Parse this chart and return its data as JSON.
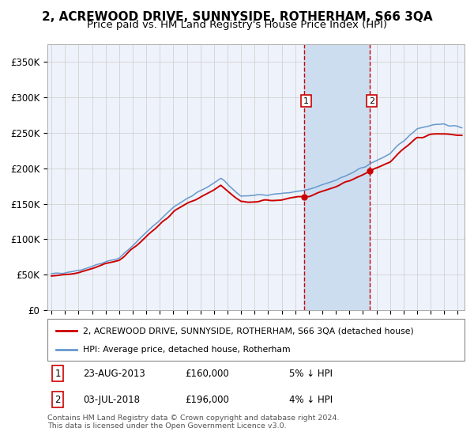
{
  "title": "2, ACREWOOD DRIVE, SUNNYSIDE, ROTHERHAM, S66 3QA",
  "subtitle": "Price paid vs. HM Land Registry's House Price Index (HPI)",
  "ylabel_ticks": [
    "£0",
    "£50K",
    "£100K",
    "£150K",
    "£200K",
    "£250K",
    "£300K",
    "£350K"
  ],
  "ytick_values": [
    0,
    50000,
    100000,
    150000,
    200000,
    250000,
    300000,
    350000
  ],
  "ylim": [
    0,
    375000
  ],
  "xlim_start": 1994.7,
  "xlim_end": 2025.5,
  "sale1_date": 2013.64,
  "sale1_price": 160000,
  "sale1_label": "1",
  "sale1_hpi_diff": "5% ↓ HPI",
  "sale1_date_str": "23-AUG-2013",
  "sale2_date": 2018.5,
  "sale2_price": 196000,
  "sale2_label": "2",
  "sale2_hpi_diff": "4% ↓ HPI",
  "sale2_date_str": "03-JUL-2018",
  "legend_line1": "2, ACREWOOD DRIVE, SUNNYSIDE, ROTHERHAM, S66 3QA (detached house)",
  "legend_line2": "HPI: Average price, detached house, Rotherham",
  "footnote": "Contains HM Land Registry data © Crown copyright and database right 2024.\nThis data is licensed under the Open Government Licence v3.0.",
  "line_color_red": "#cc0000",
  "line_color_blue": "#6699cc",
  "shading_color": "#ccddf0",
  "background_color": "#eef2fa",
  "grid_color": "#cccccc",
  "title_fontsize": 11,
  "subtitle_fontsize": 9.5,
  "tick_fontsize": 8.5
}
